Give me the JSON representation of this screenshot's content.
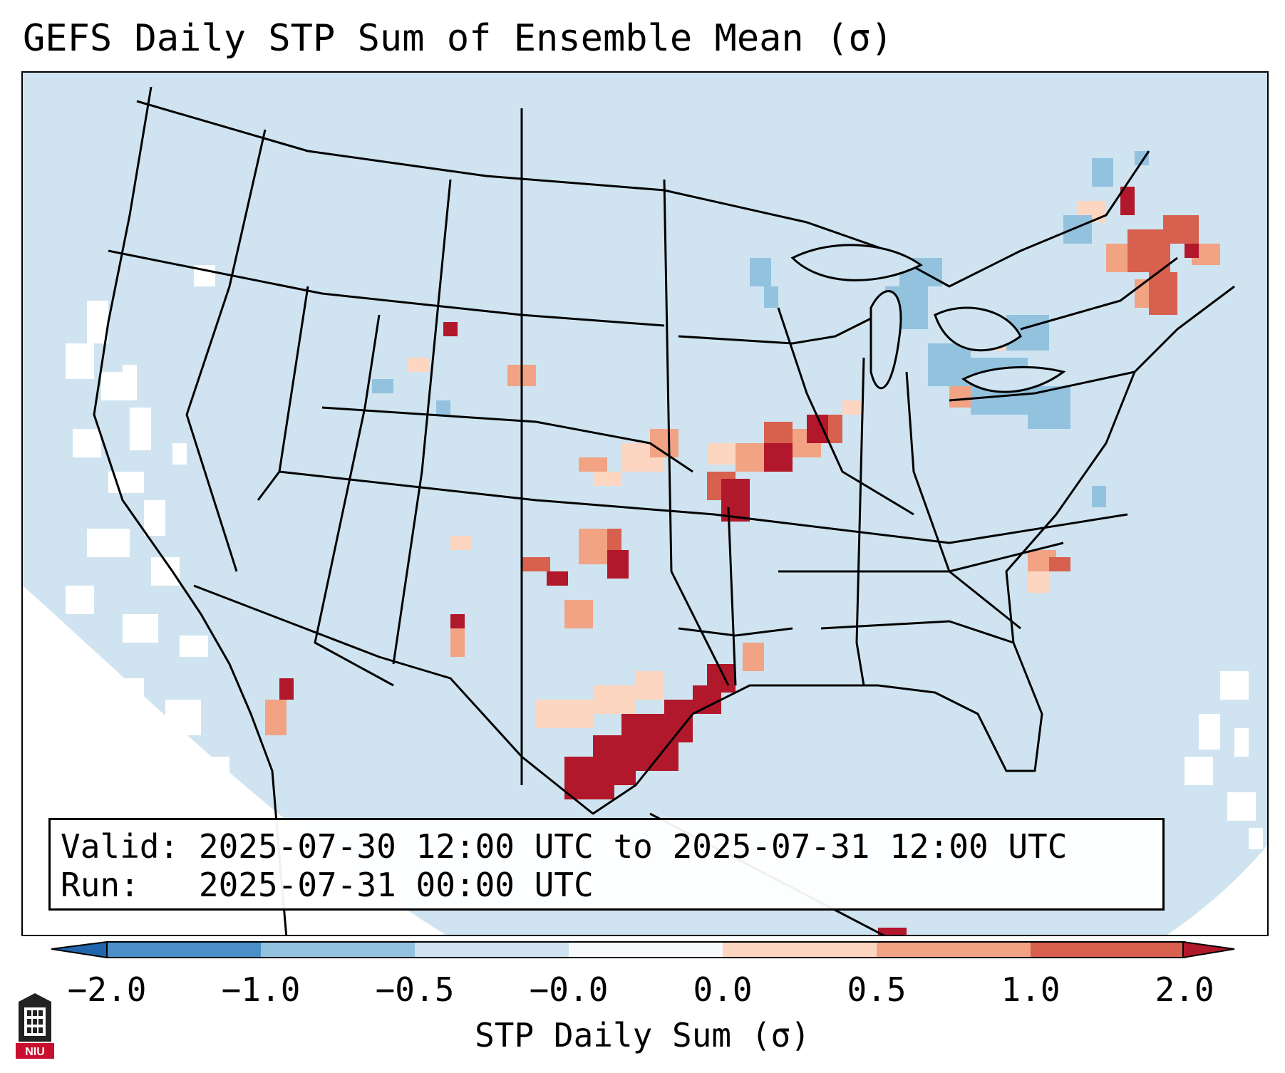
{
  "title": "GEFS Daily STP Sum of Ensemble Mean (σ)",
  "info": {
    "valid_label": "Valid:",
    "valid_value": "2025-07-30 12:00 UTC to 2025-07-31 12:00 UTC",
    "run_label": "Run:",
    "run_value": "2025-07-31 00:00 UTC"
  },
  "colorbar": {
    "label": "STP Daily Sum (σ)",
    "ticks": [
      "−2.0",
      "−1.0",
      "−0.5",
      "−0.0",
      "0.0",
      "0.5",
      "1.0",
      "2.0"
    ],
    "colors": [
      "#4a8fc7",
      "#93c2df",
      "#cfe4f0",
      "#f7f8fb",
      "#fdd6c1",
      "#f1a384",
      "#d7604e",
      "#b2182b"
    ],
    "extend_low_color": "#2166ac",
    "extend_high_color": "#b2182b"
  },
  "map": {
    "background_color": "#cfe4f0",
    "projection": "Lambert Conformal (CONUS)"
  },
  "logo": {
    "text": "NIU"
  }
}
